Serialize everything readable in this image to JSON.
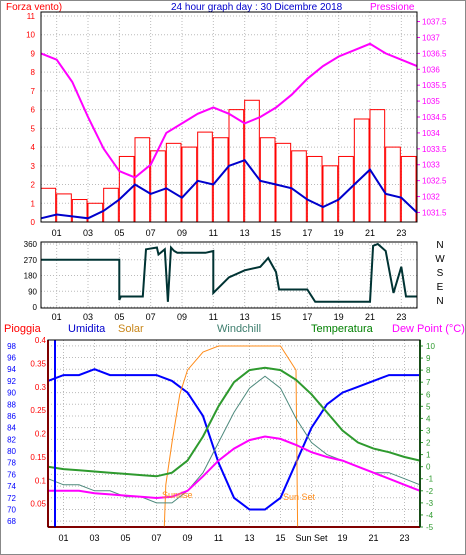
{
  "header": {
    "left_label": "Forza vento)",
    "title": "24 hour graph day : 30 Dicembre 2018",
    "right_label": "Pressione"
  },
  "compass": [
    "N",
    "W",
    "S",
    "E",
    "N"
  ],
  "legend": {
    "pioggia": "Pioggia",
    "umidita": "Umidita",
    "solar": "Solar",
    "windchill": "Windchill",
    "temperatura": "Temperatura",
    "dewpoint": "Dew Point (°C)"
  },
  "annotations": {
    "sunrise": "Sunrise",
    "sunset": "Sun Set"
  },
  "colors": {
    "wind": "#ff0000",
    "gust": "#0000cc",
    "pressure": "#ff00ff",
    "direction": "#003333",
    "humidity": "#0000ff",
    "solar": "#ff8c1a",
    "windchill": "#4e8a7d",
    "temperature": "#2e9a2e",
    "dewpoint": "#ff00ff",
    "rain": "#ff0000",
    "frame": "#000000",
    "grid": "#bbbbbb"
  },
  "chart_data": [
    {
      "type": "line",
      "title": "24 hour graph day : 30 Dicembre 2018",
      "x_ticks": [
        "01",
        "03",
        "05",
        "07",
        "09",
        "11",
        "13",
        "15",
        "17",
        "19",
        "21",
        "23"
      ],
      "left_axis": {
        "label": "Forza vento)",
        "ticks": [
          "0",
          "1",
          "2",
          "3",
          "4",
          "5",
          "6",
          "7",
          "8",
          "9",
          "10",
          "11"
        ],
        "range": [
          0,
          11
        ]
      },
      "right_axis": {
        "label": "Pressione",
        "ticks": [
          "1031.5",
          "1032",
          "1032.5",
          "1033",
          "1033.5",
          "1034",
          "1034.5",
          "1035",
          "1035.5",
          "1036",
          "1036.5",
          "1037",
          "1037.5"
        ],
        "range": [
          1031.2,
          1037.8
        ]
      },
      "series": [
        {
          "name": "Forza vento)",
          "axis": "left",
          "style": "bars",
          "x": [
            0,
            1,
            2,
            3,
            4,
            5,
            6,
            7,
            8,
            9,
            10,
            11,
            12,
            13,
            14,
            15,
            16,
            17,
            18,
            19,
            20,
            21,
            22,
            23,
            24
          ],
          "y": [
            1.8,
            1.5,
            1.2,
            1.0,
            1.8,
            3.5,
            4.5,
            3.8,
            4.2,
            4.0,
            4.8,
            4.5,
            6.0,
            6.5,
            4.5,
            4.2,
            3.8,
            3.5,
            3.0,
            3.5,
            5.5,
            6.0,
            4.0,
            3.5,
            2.5
          ]
        },
        {
          "name": "",
          "axis": "left",
          "style": "line",
          "x": [
            0,
            1,
            2,
            3,
            4,
            5,
            6,
            7,
            8,
            9,
            10,
            11,
            12,
            13,
            14,
            15,
            16,
            17,
            18,
            19,
            20,
            21,
            22,
            23,
            24
          ],
          "y": [
            0.2,
            0.4,
            0.3,
            0.2,
            0.6,
            1.2,
            2.0,
            1.5,
            1.8,
            1.3,
            2.2,
            2.0,
            3.0,
            3.3,
            2.2,
            2.0,
            1.8,
            1.2,
            0.8,
            1.2,
            2.0,
            2.8,
            1.5,
            1.3,
            0.5
          ]
        },
        {
          "name": "Pressione",
          "axis": "right",
          "style": "line",
          "x": [
            0,
            1,
            2,
            3,
            4,
            5,
            6,
            7,
            8,
            9,
            10,
            11,
            12,
            13,
            14,
            15,
            16,
            17,
            18,
            19,
            20,
            21,
            22,
            23,
            24
          ],
          "y": [
            1036.5,
            1036.3,
            1035.6,
            1034.5,
            1033.5,
            1032.8,
            1032.6,
            1033.0,
            1034.0,
            1034.3,
            1034.6,
            1034.8,
            1034.6,
            1034.3,
            1034.5,
            1034.8,
            1035.2,
            1035.7,
            1036.1,
            1036.4,
            1036.6,
            1036.8,
            1036.5,
            1036.3,
            1036.1
          ]
        }
      ]
    },
    {
      "type": "line",
      "y_ticks": [
        "0",
        "90",
        "180",
        "270",
        "360"
      ],
      "y_range": [
        0,
        360
      ],
      "x_ticks": [
        "01",
        "03",
        "05",
        "07",
        "09",
        "11",
        "13",
        "15",
        "17",
        "19",
        "21",
        "23"
      ],
      "series": [
        {
          "name": "",
          "x": [
            0,
            5,
            5,
            5.1,
            6.5,
            6.7,
            7.4,
            7.5,
            7.9,
            8.1,
            8.3,
            8.5,
            8.7,
            10.5,
            11,
            11,
            12,
            13,
            14,
            14.5,
            15,
            15.2,
            17,
            17.5,
            21,
            21.2,
            21.5,
            22,
            22.5,
            23,
            23.3,
            24
          ],
          "y": [
            270,
            270,
            40,
            60,
            60,
            330,
            340,
            300,
            330,
            30,
            340,
            320,
            310,
            310,
            320,
            80,
            170,
            210,
            230,
            280,
            200,
            100,
            100,
            30,
            30,
            350,
            360,
            320,
            80,
            230,
            60,
            60
          ]
        }
      ]
    },
    {
      "type": "line",
      "x_ticks": [
        "01",
        "03",
        "05",
        "07",
        "09",
        "11",
        "13",
        "15",
        "Sun Set",
        "19",
        "21",
        "23"
      ],
      "humidity_axis": {
        "ticks": [
          "68",
          "70",
          "72",
          "74",
          "76",
          "78",
          "80",
          "82",
          "84",
          "86",
          "88",
          "90",
          "92",
          "94",
          "96",
          "98"
        ],
        "range": [
          67,
          99
        ]
      },
      "rain_axis": {
        "ticks": [
          "0.05",
          "0.1",
          "0.15",
          "0.2",
          "0.25",
          "0.3",
          "0.35",
          "0.4"
        ],
        "range": [
          0,
          0.4
        ]
      },
      "temperature_axis": {
        "ticks": [
          "-5",
          "-4",
          "-3",
          "-2",
          "-1",
          "0",
          "1",
          "2",
          "3",
          "4",
          "5",
          "6",
          "7",
          "8",
          "9",
          "10"
        ],
        "range": [
          -5,
          10
        ]
      },
      "series": [
        {
          "name": "Umidita",
          "axis": "humidity",
          "x": [
            0,
            1,
            2,
            3,
            4,
            5,
            6,
            7,
            8,
            9,
            10,
            11,
            12,
            13,
            14,
            15,
            16,
            17,
            18,
            19,
            20,
            21,
            22,
            23,
            24
          ],
          "y": [
            92,
            93,
            93,
            94,
            93,
            93,
            93,
            93,
            92,
            90,
            86,
            78,
            72,
            70,
            70,
            72,
            78,
            84,
            88,
            90,
            91,
            92,
            93,
            93,
            93
          ]
        },
        {
          "name": "Pioggia",
          "axis": "rain",
          "x": [
            0,
            24
          ],
          "y": [
            0,
            0
          ]
        },
        {
          "name": "Solar",
          "axis": "temperature",
          "x": [
            0,
            7.5,
            7.6,
            8,
            8.5,
            9,
            10,
            11,
            12,
            13,
            14,
            15,
            15.5,
            16,
            16.1,
            24
          ],
          "y": [
            -5,
            -5,
            -1.5,
            2,
            6,
            8,
            9.5,
            10,
            10,
            10,
            10,
            10,
            9,
            8,
            -5,
            -5
          ]
        },
        {
          "name": "Windchill",
          "axis": "temperature",
          "x": [
            0,
            1,
            2,
            3,
            4,
            5,
            6,
            7,
            8,
            9,
            10,
            11,
            12,
            13,
            14,
            15,
            16,
            17,
            18,
            19,
            20,
            21,
            22,
            23,
            24
          ],
          "y": [
            -1,
            -1.5,
            -1.5,
            -2,
            -2,
            -2.5,
            -2.5,
            -3,
            -3,
            -2,
            -0.5,
            2,
            4.5,
            6.5,
            7.5,
            6.5,
            4,
            2,
            1,
            0.5,
            0,
            -0.5,
            -0.5,
            -1,
            -1.5
          ]
        },
        {
          "name": "Temperatura",
          "axis": "temperature",
          "x": [
            0,
            1,
            2,
            3,
            4,
            5,
            6,
            7,
            8,
            9,
            10,
            11,
            12,
            13,
            14,
            15,
            16,
            17,
            18,
            19,
            20,
            21,
            22,
            23,
            24
          ],
          "y": [
            0,
            -0.2,
            -0.3,
            -0.4,
            -0.5,
            -0.6,
            -0.7,
            -0.8,
            -0.5,
            0.5,
            2.5,
            5.0,
            7.0,
            8.0,
            8.2,
            8.0,
            7.2,
            6.0,
            4.5,
            3.0,
            2.0,
            1.5,
            1.2,
            0.8,
            0.5
          ]
        },
        {
          "name": "Dew Point (°C)",
          "axis": "temperature",
          "x": [
            0,
            1,
            2,
            3,
            4,
            5,
            6,
            7,
            8,
            9,
            10,
            11,
            12,
            13,
            14,
            15,
            16,
            17,
            18,
            19,
            20,
            21,
            22,
            23,
            24
          ],
          "y": [
            -2.0,
            -2.0,
            -2.0,
            -2.2,
            -2.3,
            -2.4,
            -2.5,
            -2.6,
            -2.5,
            -2.0,
            -0.8,
            0.5,
            1.5,
            2.2,
            2.5,
            2.3,
            1.8,
            1.2,
            0.8,
            0.5,
            0.0,
            -0.5,
            -1.0,
            -1.5,
            -2.0
          ]
        }
      ]
    }
  ]
}
